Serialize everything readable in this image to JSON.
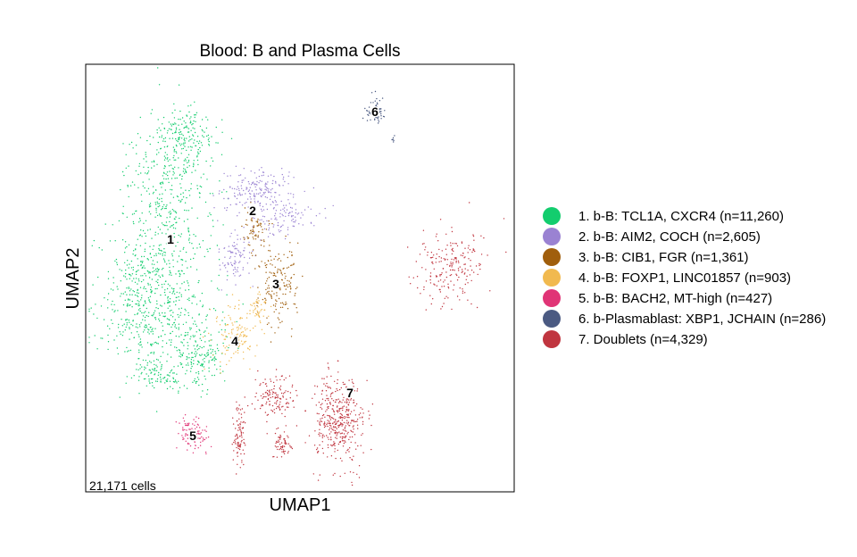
{
  "chart_data": {
    "type": "scatter",
    "title": "Blood: B and Plasma Cells",
    "xlabel": "UMAP1",
    "ylabel": "UMAP2",
    "cell_count_label": "21,171 cells",
    "ticks_shown": false,
    "grid": false,
    "legend_placement": "right",
    "clusters": [
      {
        "id": "1",
        "label": "1. b-B: TCL1A, CXCR4 (n=11,260)",
        "n": 11260,
        "color": "#13cd6e"
      },
      {
        "id": "2",
        "label": "2. b-B: AIM2, COCH (n=2,605)",
        "n": 2605,
        "color": "#9a82d2"
      },
      {
        "id": "3",
        "label": "3. b-B: CIB1, FGR (n=1,361)",
        "n": 1361,
        "color": "#a05e0c"
      },
      {
        "id": "4",
        "label": "4. b-B: FOXP1, LINC01857 (n=903)",
        "n": 903,
        "color": "#f1b94f"
      },
      {
        "id": "5",
        "label": "5. b-B: BACH2, MT-high (n=427)",
        "n": 427,
        "color": "#e03476"
      },
      {
        "id": "6",
        "label": "6. b-Plasmablast: XBP1, JCHAIN  (n=286)",
        "n": 286,
        "color": "#4b5a82"
      },
      {
        "id": "7",
        "label": "7. Doublets (n=4,329)",
        "n": 4329,
        "color": "#c0353f"
      }
    ]
  }
}
